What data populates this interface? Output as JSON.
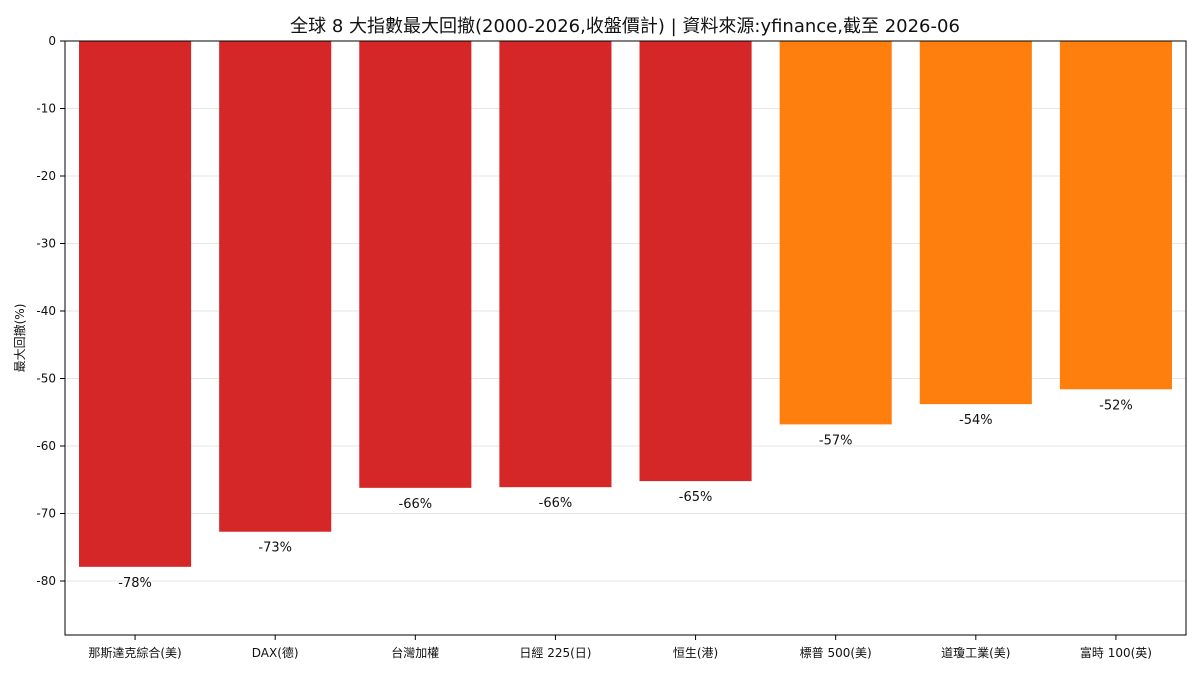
{
  "chart_data": {
    "type": "bar",
    "title": "全球 8 大指數最大回撤(2000-2026,收盤價計) | 資料來源:yfinance,截至 2026-06",
    "xlabel": "",
    "ylabel": "最大回撤(%)",
    "ylim": [
      -88,
      0
    ],
    "yticks": [
      0,
      -10,
      -20,
      -30,
      -40,
      -50,
      -60,
      -70,
      -80
    ],
    "grid": true,
    "categories": [
      "那斯達克綜合(美)",
      "DAX(德)",
      "台灣加權",
      "日經 225(日)",
      "恒生(港)",
      "標普 500(美)",
      "道瓊工業(美)",
      "富時 100(英)"
    ],
    "values": [
      -77.9,
      -72.7,
      -66.2,
      -66.1,
      -65.2,
      -56.8,
      -53.8,
      -51.6
    ],
    "value_labels": [
      "-78%",
      "-73%",
      "-66%",
      "-66%",
      "-65%",
      "-57%",
      "-54%",
      "-52%"
    ],
    "colors": [
      "#d62728",
      "#d62728",
      "#d62728",
      "#d62728",
      "#d62728",
      "#ff7f0e",
      "#ff7f0e",
      "#ff7f0e"
    ]
  }
}
